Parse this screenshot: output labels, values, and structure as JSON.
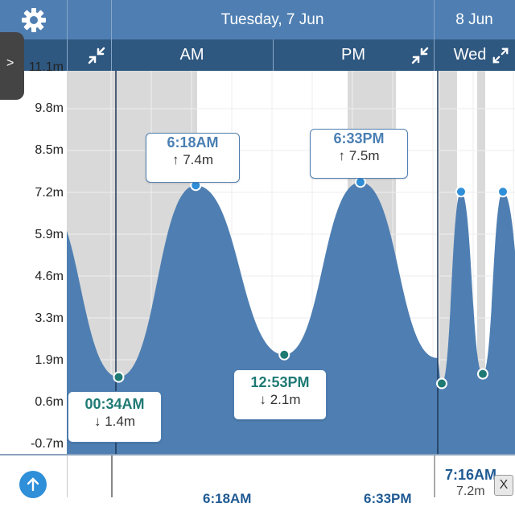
{
  "header": {
    "day_label": "Tuesday, 7 Jun",
    "next_day_label": "8 Jun",
    "am_label": "AM",
    "pm_label": "PM",
    "next_half_label": "Wed",
    "gear_icon": "gear-icon",
    "collapse_icon": "collapse-arrows-icon",
    "expand_icon": "expand-arrows-icon"
  },
  "side_tab": {
    "label": ">"
  },
  "y_axis": {
    "unit": "m",
    "ticks": [
      "9.8m",
      "8.5m",
      "7.2m",
      "5.9m",
      "4.6m",
      "3.3m",
      "1.9m",
      "0.6m",
      "-0.7m"
    ],
    "partial_top_label": "11.1m"
  },
  "chart_data": {
    "type": "area",
    "x_label": "",
    "y_label": "",
    "y_range": [
      -0.7,
      11.1
    ],
    "tides": [
      {
        "type": "low",
        "time": "00:34AM",
        "height": 1.4,
        "label": "↓ 1.4m"
      },
      {
        "type": "high",
        "time": "6:18AM",
        "height": 7.4,
        "label": "↑ 7.4m"
      },
      {
        "type": "low",
        "time": "12:53PM",
        "height": 2.1,
        "label": "↓ 2.1m"
      },
      {
        "type": "high",
        "time": "6:33PM",
        "height": 7.5,
        "label": "↑ 7.5m"
      }
    ],
    "colors": {
      "fill": "#4f7fb2",
      "night": "#d9d9d9",
      "high_point": "#2f8fd8",
      "low_point": "#1f7a74"
    }
  },
  "bottom_bar": {
    "next_time": "7:16AM",
    "next_height": "7.2m",
    "partial_am": "6:18AM",
    "partial_pm": "6:33PM",
    "close_label": "X",
    "up_icon": "arrow-up-icon"
  }
}
